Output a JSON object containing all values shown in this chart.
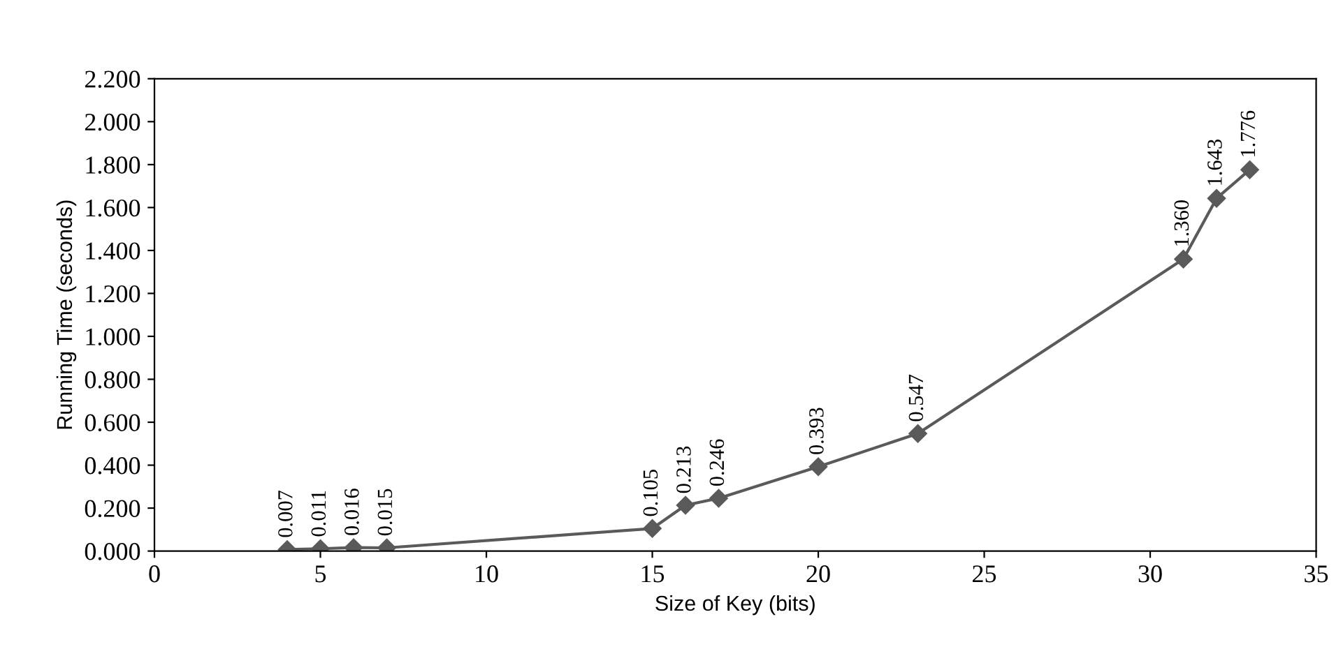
{
  "chart_data": {
    "type": "line",
    "xlabel": "Size of Key (bits)",
    "ylabel": "Running Time (seconds)",
    "x": [
      4,
      5,
      6,
      7,
      15,
      16,
      17,
      20,
      23,
      31,
      32,
      33
    ],
    "series": [
      {
        "color": "#5a5a5a",
        "values": [
          0.007,
          0.011,
          0.016,
          0.015,
          0.105,
          0.213,
          0.246,
          0.393,
          0.547,
          1.36,
          1.643,
          1.776
        ]
      }
    ],
    "value_labels": [
      "0.007",
      "0.011",
      "0.016",
      "0.015",
      "0.105",
      "0.213",
      "0.246",
      "0.393",
      "0.547",
      "1.360",
      "1.643",
      "1.776"
    ],
    "xlim": [
      0,
      35
    ],
    "xticks": [
      0,
      5,
      10,
      15,
      20,
      25,
      30,
      35
    ],
    "ylim": [
      0,
      2.2
    ],
    "yticks": [
      {
        "value": 0,
        "label": "0.000"
      },
      {
        "value": 0.2,
        "label": "0.200"
      },
      {
        "value": 0.4,
        "label": "0.400"
      },
      {
        "value": 0.6,
        "label": "0.600"
      },
      {
        "value": 0.8,
        "label": "0.800"
      },
      {
        "value": 1.0,
        "label": "1.000"
      },
      {
        "value": 1.2,
        "label": "1.200"
      },
      {
        "value": 1.4,
        "label": "1.400"
      },
      {
        "value": 1.6,
        "label": "1.600"
      },
      {
        "value": 1.8,
        "label": "1.800"
      },
      {
        "value": 2.0,
        "label": "2.000"
      },
      {
        "value": 2.2,
        "label": "2.200"
      }
    ],
    "marker": "diamond",
    "line_style": "solid",
    "grid": false,
    "legend": false
  }
}
